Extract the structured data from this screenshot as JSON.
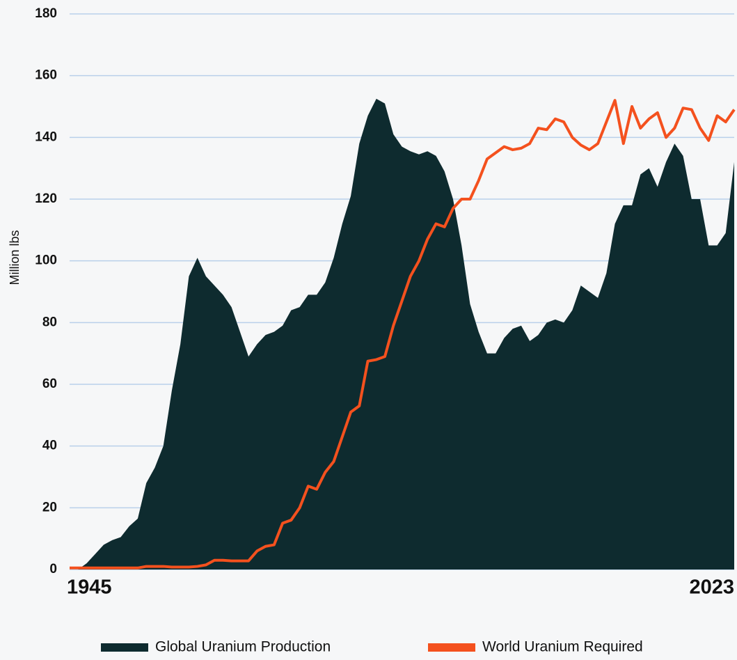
{
  "chart_data": {
    "type": "area",
    "y_label": "Million lbs",
    "x": [
      1945,
      1946,
      1947,
      1948,
      1949,
      1950,
      1951,
      1952,
      1953,
      1954,
      1955,
      1956,
      1957,
      1958,
      1959,
      1960,
      1961,
      1962,
      1963,
      1964,
      1965,
      1966,
      1967,
      1968,
      1969,
      1970,
      1971,
      1972,
      1973,
      1974,
      1975,
      1976,
      1977,
      1978,
      1979,
      1980,
      1981,
      1982,
      1983,
      1984,
      1985,
      1986,
      1987,
      1988,
      1989,
      1990,
      1991,
      1992,
      1993,
      1994,
      1995,
      1996,
      1997,
      1998,
      1999,
      2000,
      2001,
      2002,
      2003,
      2004,
      2005,
      2006,
      2007,
      2008,
      2009,
      2010,
      2011,
      2012,
      2013,
      2014,
      2015,
      2016,
      2017,
      2018,
      2019,
      2020,
      2021,
      2022,
      2023
    ],
    "series": [
      {
        "name": "Global Uranium Production",
        "color": "#0e2b2f",
        "type": "area",
        "values": [
          0,
          0,
          2,
          5,
          8,
          9.5,
          10.5,
          14,
          16.5,
          28,
          33,
          40,
          58,
          73,
          95,
          101,
          95,
          92,
          89,
          85,
          77,
          69,
          73,
          76,
          77,
          79,
          84,
          85,
          89,
          89,
          93,
          101,
          112,
          121,
          138,
          147,
          152.5,
          151,
          141,
          137,
          135.5,
          134.5,
          135.5,
          134,
          129,
          120,
          105,
          86,
          77,
          70,
          70,
          75,
          78,
          79,
          74,
          76,
          80,
          81,
          80,
          84,
          92,
          90,
          88,
          96,
          112,
          118,
          118,
          128,
          130,
          124,
          132,
          138,
          134,
          120,
          120,
          105,
          105,
          109,
          132
        ]
      },
      {
        "name": "World Uranium Required",
        "color": "#f4511e",
        "type": "line",
        "values": [
          0.5,
          0.5,
          0.5,
          0.5,
          0.5,
          0.5,
          0.5,
          0.5,
          0.5,
          1,
          1,
          1,
          0.8,
          0.8,
          0.8,
          1,
          1.5,
          3,
          3,
          2.8,
          2.8,
          2.8,
          6,
          7.5,
          8,
          15,
          16,
          20,
          27,
          26,
          31.5,
          35,
          43,
          51,
          53,
          67.5,
          68,
          69,
          79,
          87,
          95,
          100,
          107,
          112,
          111,
          117,
          120,
          120,
          126,
          133,
          135,
          137,
          136,
          136.5,
          138,
          143,
          142.5,
          146,
          145,
          140,
          137.5,
          136,
          138,
          145,
          152,
          138,
          150,
          143,
          146,
          148,
          140,
          143,
          149.5,
          149,
          143,
          139,
          147,
          145,
          149
        ]
      }
    ],
    "xlim": [
      1945,
      2023
    ],
    "xticks": [
      1945,
      2023
    ],
    "ylim": [
      0,
      180
    ],
    "yticks": [
      0,
      20,
      40,
      60,
      80,
      100,
      120,
      140,
      160,
      180
    ],
    "grid": true,
    "legend": "bottom"
  }
}
